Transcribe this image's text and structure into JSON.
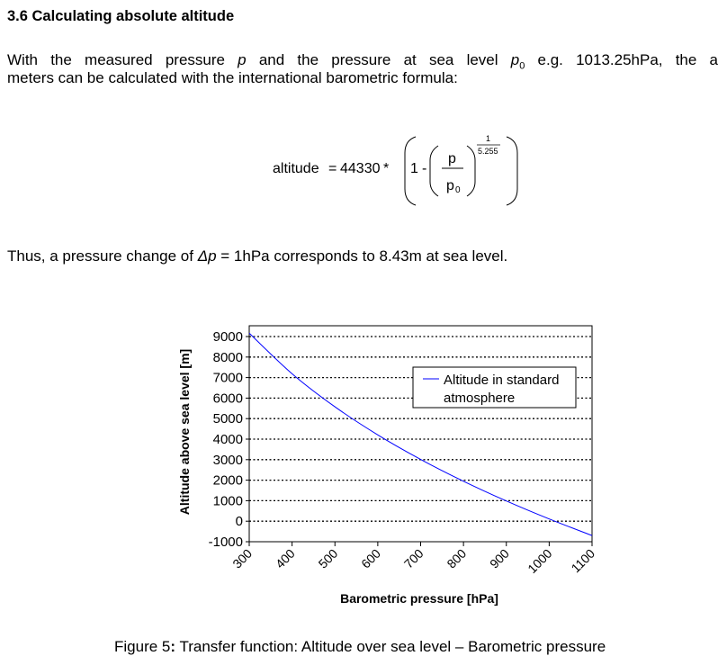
{
  "heading": "3.6 Calculating absolute altitude",
  "paragraph1": {
    "line1_parts": [
      "With the measured pressure ",
      "p",
      " and the pressure at sea level ",
      "p",
      "0",
      " e.g. 1013.25hPa, the a"
    ],
    "line2": "meters can be calculated with the international barometric formula:"
  },
  "formula": {
    "lhs": "altitude",
    "equals": "=",
    "constant": "44330",
    "times": "*",
    "one": "1",
    "minus": "-",
    "numerator": "p",
    "denominator": "p",
    "denominator_sub": "0",
    "exp_num": "1",
    "exp_den": "5.255"
  },
  "thus_parts": [
    "Thus, a pressure change of ",
    "Δp",
    " = 1hPa corresponds to 8.43m at sea level."
  ],
  "caption": {
    "prefix": "Figure 5",
    "colon": ":",
    "text": " Transfer function: Altitude over sea level – Barometric pressure"
  },
  "chart_data": {
    "type": "line",
    "xlabel": "Barometric pressure [hPa]",
    "ylabel": "Altitude above sea level [m]",
    "xlim": [
      300,
      1100
    ],
    "ylim": [
      -1000,
      9500
    ],
    "x_ticks": [
      "300",
      "400",
      "500",
      "600",
      "700",
      "800",
      "900",
      "1000",
      "1100"
    ],
    "y_ticks": [
      "9000",
      "8000",
      "7000",
      "6000",
      "5000",
      "4000",
      "3000",
      "2000",
      "1000",
      "0",
      "-1000"
    ],
    "grid": "horizontal dotted",
    "legend_placement": "top-right",
    "series": [
      {
        "name": "Altitude in standard atmosphere",
        "name_lines": [
          "Altitude in standard",
          "atmosphere"
        ],
        "color": "#0000ff",
        "x": [
          300,
          400,
          500,
          600,
          700,
          800,
          900,
          1000,
          1100
        ],
        "y": [
          9164,
          7186,
          5575,
          4207,
          3013,
          1949,
          988,
          111,
          -698
        ]
      }
    ]
  }
}
